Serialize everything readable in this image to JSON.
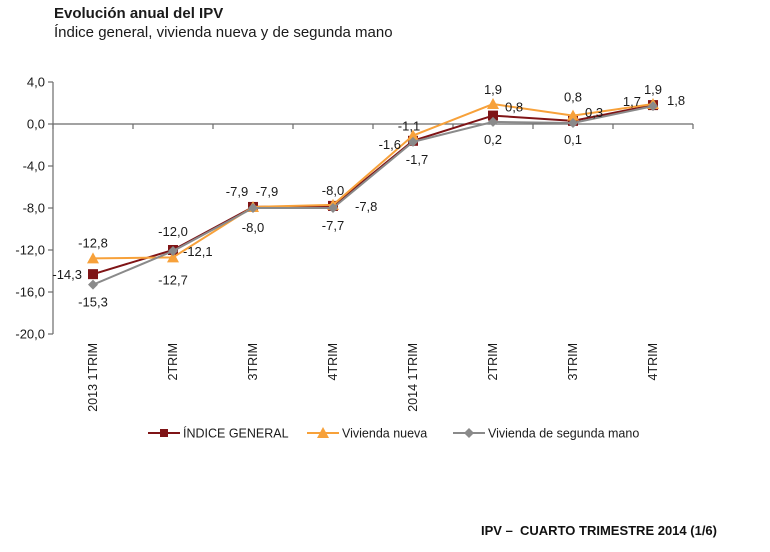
{
  "header": {
    "title": "Evolución anual del IPV",
    "subtitle": "Índice general, vivienda nueva y de segunda mano"
  },
  "footer": {
    "text": "IPV –  CUARTO TRIMESTRE 2014 (1/6)"
  },
  "chart_data": {
    "type": "line",
    "title": "Evolución anual del IPV",
    "subtitle": "Índice general, vivienda nueva y de segunda mano",
    "xlabel": "",
    "ylabel": "",
    "categories": [
      "2013 1TRIM",
      "2TRIM",
      "3TRIM",
      "4TRIM",
      "2014 1TRIM",
      "2TRIM",
      "3TRIM",
      "4TRIM"
    ],
    "ylim": [
      -20.0,
      4.0
    ],
    "yticks": [
      4.0,
      0.0,
      -4.0,
      -8.0,
      -12.0,
      -16.0,
      -20.0
    ],
    "ytick_labels": [
      "4,0",
      "0,0",
      "-4,0",
      "-8,0",
      "-12,0",
      "-16,0",
      "-20,0"
    ],
    "grid": false,
    "legend_position": "bottom",
    "series": [
      {
        "name": "ÍNDICE GENERAL",
        "color": "#7f1416",
        "marker": "square",
        "values": [
          -14.3,
          -12.0,
          -7.9,
          -7.8,
          -1.6,
          0.8,
          0.3,
          1.8
        ],
        "labels": [
          "-14,3",
          "-12,0",
          "-7,9",
          "-7,8",
          "-1,6",
          "0,8",
          "0,3",
          "1,8"
        ]
      },
      {
        "name": "Vivienda nueva",
        "color": "#f7a13a",
        "marker": "triangle",
        "values": [
          -12.8,
          -12.7,
          -7.9,
          -7.7,
          -1.1,
          1.9,
          0.8,
          1.9
        ],
        "labels": [
          "-12,8",
          "-12,7",
          "-7,9",
          "-7,7",
          "-1,1",
          "1,9",
          "0,8",
          "1,9"
        ]
      },
      {
        "name": "Vivienda de segunda mano",
        "color": "#8a8a8a",
        "marker": "diamond",
        "values": [
          -15.3,
          -12.1,
          -8.0,
          -8.0,
          -1.7,
          0.2,
          0.1,
          1.7
        ],
        "labels": [
          "-15,3",
          "-12,1",
          "-8,0",
          "-8,0",
          "-1,7",
          "0,2",
          "0,1",
          "1,7"
        ]
      }
    ]
  }
}
